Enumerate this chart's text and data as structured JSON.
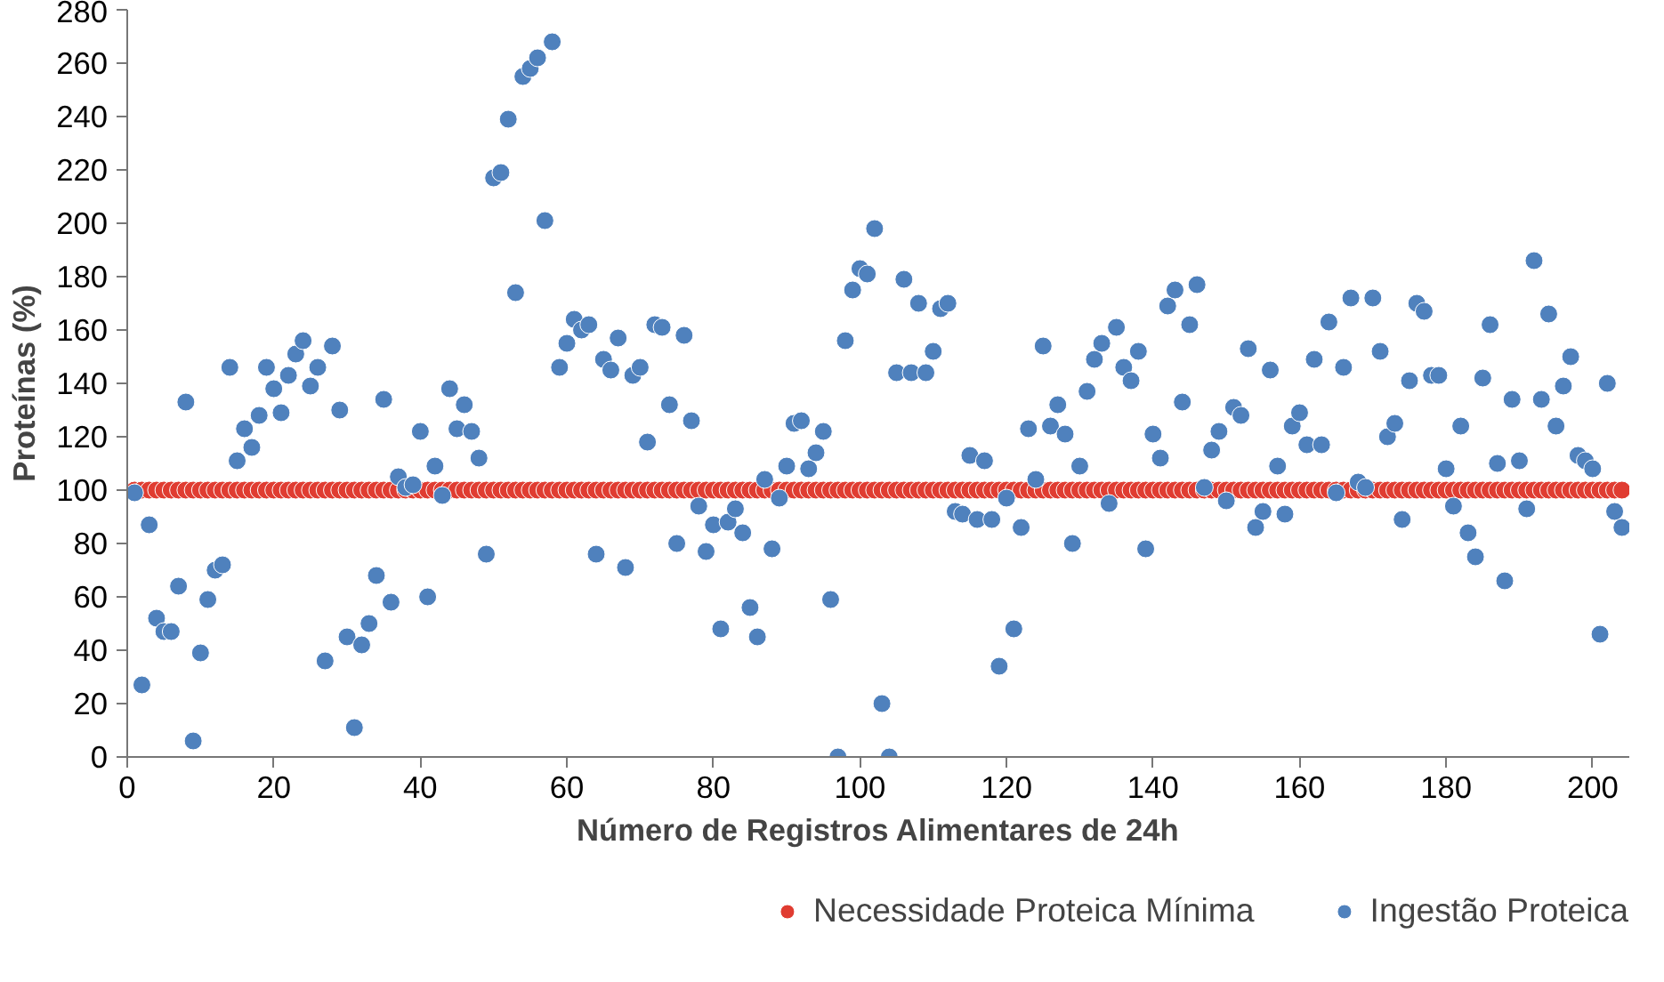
{
  "chart_data": {
    "type": "scatter",
    "xlabel": "Número de Registros Alimentares de 24h",
    "ylabel": "Proteínas (%)",
    "xlim": [
      0,
      205
    ],
    "xticks": [
      0,
      20,
      40,
      60,
      80,
      100,
      120,
      140,
      160,
      180,
      200
    ],
    "ylim": [
      0,
      280
    ],
    "yticks": [
      0,
      20,
      40,
      60,
      80,
      100,
      120,
      140,
      160,
      180,
      200,
      220,
      240,
      260,
      280
    ],
    "grid": false,
    "legend": "bottom",
    "marker": "circle",
    "x": [
      1,
      2,
      3,
      4,
      5,
      6,
      7,
      8,
      9,
      10,
      11,
      12,
      13,
      14,
      15,
      16,
      17,
      18,
      19,
      20,
      21,
      22,
      23,
      24,
      25,
      26,
      27,
      28,
      29,
      30,
      31,
      32,
      33,
      34,
      35,
      36,
      37,
      38,
      39,
      40,
      41,
      42,
      43,
      44,
      45,
      46,
      47,
      48,
      49,
      50,
      51,
      52,
      53,
      54,
      55,
      56,
      57,
      58,
      59,
      60,
      61,
      62,
      63,
      64,
      65,
      66,
      67,
      68,
      69,
      70,
      71,
      72,
      73,
      74,
      75,
      76,
      77,
      78,
      79,
      80,
      81,
      82,
      83,
      84,
      85,
      86,
      87,
      88,
      89,
      90,
      91,
      92,
      93,
      94,
      95,
      96,
      97,
      98,
      99,
      100,
      101,
      102,
      103,
      104,
      105,
      106,
      107,
      108,
      109,
      110,
      111,
      112,
      113,
      114,
      115,
      116,
      117,
      118,
      119,
      120,
      121,
      122,
      123,
      124,
      125,
      126,
      127,
      128,
      129,
      130,
      131,
      132,
      133,
      134,
      135,
      136,
      137,
      138,
      139,
      140,
      141,
      142,
      143,
      144,
      145,
      146,
      147,
      148,
      149,
      150,
      151,
      152,
      153,
      154,
      155,
      156,
      157,
      158,
      159,
      160,
      161,
      162,
      163,
      164,
      165,
      166,
      167,
      168,
      169,
      170,
      171,
      172,
      173,
      174,
      175,
      176,
      177,
      178,
      179,
      180,
      181,
      182,
      183,
      184,
      185,
      186,
      187,
      188,
      189,
      190,
      191,
      192,
      193,
      194,
      195,
      196,
      197,
      198,
      199,
      200,
      201,
      202,
      203,
      204
    ],
    "series": [
      {
        "name": "Necessidade Proteica Mínima",
        "color": "#e03c31",
        "values": [
          100,
          100,
          100,
          100,
          100,
          100,
          100,
          100,
          100,
          100,
          100,
          100,
          100,
          100,
          100,
          100,
          100,
          100,
          100,
          100,
          100,
          100,
          100,
          100,
          100,
          100,
          100,
          100,
          100,
          100,
          100,
          100,
          100,
          100,
          100,
          100,
          100,
          100,
          100,
          100,
          100,
          100,
          100,
          100,
          100,
          100,
          100,
          100,
          100,
          100,
          100,
          100,
          100,
          100,
          100,
          100,
          100,
          100,
          100,
          100,
          100,
          100,
          100,
          100,
          100,
          100,
          100,
          100,
          100,
          100,
          100,
          100,
          100,
          100,
          100,
          100,
          100,
          100,
          100,
          100,
          100,
          100,
          100,
          100,
          100,
          100,
          100,
          100,
          100,
          100,
          100,
          100,
          100,
          100,
          100,
          100,
          100,
          100,
          100,
          100,
          100,
          100,
          100,
          100,
          100,
          100,
          100,
          100,
          100,
          100,
          100,
          100,
          100,
          100,
          100,
          100,
          100,
          100,
          100,
          100,
          100,
          100,
          100,
          100,
          100,
          100,
          100,
          100,
          100,
          100,
          100,
          100,
          100,
          100,
          100,
          100,
          100,
          100,
          100,
          100,
          100,
          100,
          100,
          100,
          100,
          100,
          100,
          100,
          100,
          100,
          100,
          100,
          100,
          100,
          100,
          100,
          100,
          100,
          100,
          100,
          100,
          100,
          100,
          100,
          100,
          100,
          100,
          100,
          100,
          100,
          100,
          100,
          100,
          100,
          100,
          100,
          100,
          100,
          100,
          100,
          100,
          100,
          100,
          100,
          100,
          100,
          100,
          100,
          100,
          100,
          100,
          100,
          100,
          100,
          100,
          100,
          100,
          100,
          100,
          100,
          100,
          100,
          100,
          100
        ]
      },
      {
        "name": "Ingestão Proteica",
        "color": "#4f81bd",
        "values": [
          99,
          27,
          87,
          52,
          47,
          47,
          64,
          133,
          6,
          39,
          59,
          70,
          72,
          146,
          111,
          123,
          116,
          128,
          146,
          138,
          129,
          143,
          151,
          156,
          139,
          146,
          36,
          154,
          130,
          45,
          11,
          42,
          50,
          68,
          134,
          58,
          105,
          101,
          102,
          122,
          60,
          109,
          98,
          138,
          123,
          132,
          122,
          112,
          76,
          217,
          219,
          239,
          174,
          255,
          258,
          262,
          201,
          268,
          146,
          155,
          164,
          160,
          162,
          76,
          149,
          145,
          157,
          71,
          143,
          146,
          118,
          162,
          161,
          132,
          80,
          158,
          126,
          94,
          77,
          87,
          48,
          88,
          93,
          84,
          56,
          45,
          104,
          78,
          97,
          109,
          125,
          126,
          108,
          114,
          122,
          59,
          0,
          156,
          175,
          183,
          181,
          198,
          20,
          0,
          144,
          179,
          144,
          170,
          144,
          152,
          168,
          170,
          92,
          91,
          113,
          89,
          111,
          89,
          34,
          97,
          48,
          86,
          123,
          104,
          154,
          124,
          132,
          121,
          80,
          109,
          137,
          149,
          155,
          95,
          161,
          146,
          141,
          152,
          78,
          121,
          112,
          169,
          175,
          133,
          162,
          177,
          101,
          115,
          122,
          96,
          131,
          128,
          153,
          86,
          92,
          145,
          109,
          91,
          124,
          129,
          117,
          149,
          117,
          163,
          99,
          146,
          172,
          103,
          101,
          172,
          152,
          120,
          125,
          89,
          141,
          170,
          167,
          143,
          143,
          108,
          94,
          124,
          84,
          75,
          142,
          162,
          110,
          66,
          134,
          111,
          93,
          186,
          134,
          166,
          124,
          139,
          150,
          113,
          111,
          108,
          46,
          140,
          92,
          86
        ]
      }
    ]
  }
}
